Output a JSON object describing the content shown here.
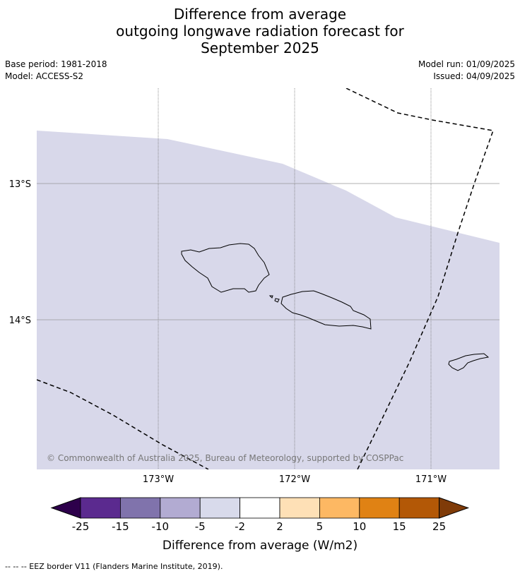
{
  "title_lines": [
    "Difference from average",
    "outgoing longwave radiation forecast for",
    "September 2025"
  ],
  "meta_left": {
    "base_period": "Base period: 1981-2018",
    "model": "Model: ACCESS-S2"
  },
  "meta_right": {
    "model_run": "Model run: 01/09/2025",
    "issued": "Issued: 04/09/2025"
  },
  "map": {
    "lat_labels": [
      "13°S",
      "14°S"
    ],
    "lon_labels": [
      "173°W",
      "172°W",
      "171°W"
    ],
    "copyright": "© Commonwealth of Australia 2025, Bureau of Meteorology, supported by COSPPac",
    "anomaly_fill_color": "#d8d8ea",
    "anomaly_category": "-5 to -2"
  },
  "colorbar": {
    "title": "Difference from average (W/m2)",
    "ticks": [
      "-25",
      "-15",
      "-10",
      "-5",
      "-2",
      "2",
      "5",
      "10",
      "15",
      "25"
    ],
    "colors": [
      "#2d004b",
      "#5b2a8f",
      "#8073ac",
      "#b2abd2",
      "#d8daeb",
      "#ffffff",
      "#fee0b6",
      "#fdb863",
      "#e08214",
      "#b35806",
      "#7f3b08"
    ]
  },
  "footer": "--  --  -- EEZ border V11 (Flanders Marine Institute, 2019)."
}
